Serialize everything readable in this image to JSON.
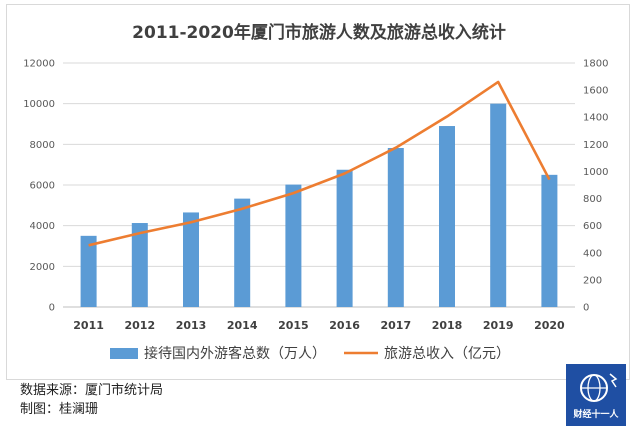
{
  "chart_data": {
    "type": "bar+line",
    "title": "2011-2020年厦门市旅游人数及旅游总收入统计",
    "categories": [
      "2011",
      "2012",
      "2013",
      "2014",
      "2015",
      "2016",
      "2017",
      "2018",
      "2019",
      "2020"
    ],
    "series": [
      {
        "name": "接待国内外游客总数（万人）",
        "type": "bar",
        "axis": "left",
        "color": "#5b9bd5",
        "values": [
          3500,
          4130,
          4650,
          5330,
          6020,
          6750,
          7820,
          8900,
          10000,
          6500
        ]
      },
      {
        "name": "旅游总收入（亿元）",
        "type": "line",
        "axis": "right",
        "color": "#ed7d31",
        "values": [
          455,
          545,
          625,
          725,
          840,
          985,
          1175,
          1405,
          1660,
          940
        ]
      }
    ],
    "y_left": {
      "range": [
        0,
        12000
      ],
      "ticks": [
        "0",
        "2000",
        "4000",
        "6000",
        "8000",
        "10000",
        "12000"
      ]
    },
    "y_right": {
      "range": [
        0,
        1800
      ],
      "ticks": [
        "0",
        "200",
        "400",
        "600",
        "800",
        "1000",
        "1200",
        "1400",
        "1600",
        "1800"
      ]
    },
    "grid": true,
    "legend_position": "bottom"
  },
  "footer": {
    "source": "数据来源：厦门市统计局",
    "author": "制图：桂澜珊"
  },
  "brand": {
    "name": "财经十一人",
    "icon": "globe-icon",
    "color": "#1f4fa3"
  }
}
